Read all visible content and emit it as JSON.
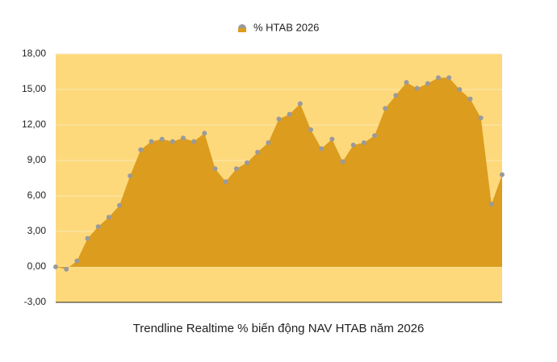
{
  "chart_data": {
    "type": "area",
    "title": "Trendline Realtime % biến động NAV HTAB năm 2026",
    "categories": [
      null,
      null,
      null,
      null,
      null,
      null,
      null,
      null,
      null,
      null,
      null,
      null,
      null,
      null,
      null,
      null,
      null,
      null,
      null,
      null,
      null,
      null,
      null,
      null,
      null,
      null,
      null,
      null,
      null,
      null,
      null,
      null,
      null,
      null,
      null,
      null,
      null,
      null,
      null,
      null,
      null,
      null,
      null
    ],
    "series": [
      {
        "name": "% HTAB 2026",
        "color": "#dc9c1e",
        "marker_color": "#9a9a9a",
        "values": [
          0.0,
          -0.2,
          0.5,
          2.4,
          3.4,
          4.2,
          5.2,
          7.7,
          9.9,
          10.6,
          10.8,
          10.6,
          10.9,
          10.6,
          11.3,
          8.3,
          7.2,
          8.3,
          8.8,
          9.7,
          10.5,
          12.5,
          12.9,
          13.8,
          11.6,
          10.0,
          10.8,
          8.9,
          10.3,
          10.5,
          11.1,
          13.4,
          14.5,
          15.6,
          15.1,
          15.5,
          16.0,
          16.0,
          15.0,
          14.2,
          12.6,
          5.3,
          7.8
        ]
      }
    ],
    "ylim": [
      -3,
      18
    ],
    "yticks": [
      {
        "value": -3,
        "label": "-3,00"
      },
      {
        "value": 0,
        "label": "0,00"
      },
      {
        "value": 3,
        "label": "3,00"
      },
      {
        "value": 6,
        "label": "6,00"
      },
      {
        "value": 9,
        "label": "9,00"
      },
      {
        "value": 12,
        "label": "12,00"
      },
      {
        "value": 15,
        "label": "15,00"
      },
      {
        "value": 18,
        "label": "18,00"
      }
    ],
    "grid": true,
    "plot_background": "#fdd97c",
    "legend": "top"
  }
}
